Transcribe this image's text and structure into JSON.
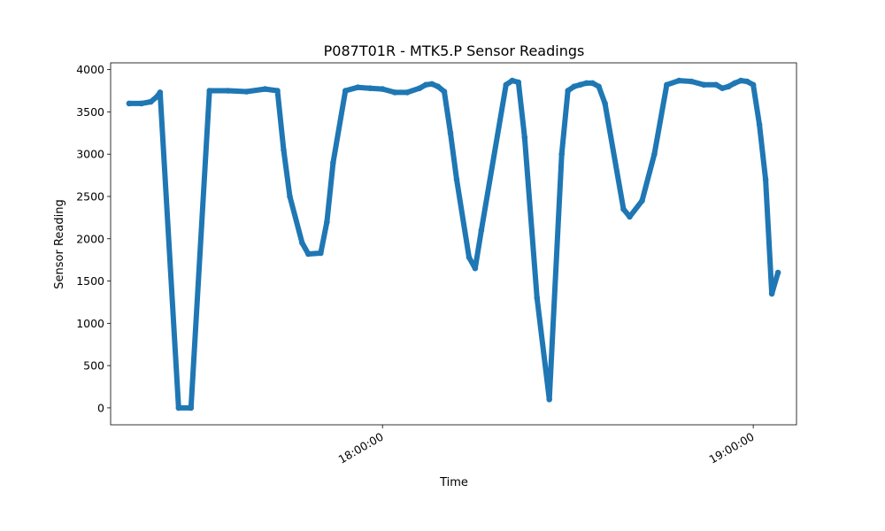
{
  "chart_data": {
    "type": "scatter",
    "title": "P087T01R - MTK5.P Sensor Readings",
    "xlabel": "Time",
    "ylabel": "Sensor Reading",
    "series_color": "#1f77b4",
    "x_ticks": [
      "18:00:00",
      "19:00:00"
    ],
    "x_range": [
      "17:16:00",
      "19:07:00"
    ],
    "ylim": [
      -200,
      4080
    ],
    "y_ticks": [
      0,
      500,
      1000,
      1500,
      2000,
      2500,
      3000,
      3500,
      4000
    ],
    "grid": false,
    "x": [
      "17:19:00",
      "17:21:00",
      "17:22:30",
      "17:23:30",
      "17:24:00",
      "17:27:00",
      "17:29:00",
      "17:32:00",
      "17:35:00",
      "17:38:00",
      "17:41:00",
      "17:43:00",
      "17:44:00",
      "17:45:00",
      "17:47:00",
      "17:48:00",
      "17:50:00",
      "17:51:00",
      "17:52:00",
      "17:54:00",
      "17:56:00",
      "17:58:00",
      "18:00:00",
      "18:02:00",
      "18:04:00",
      "18:06:00",
      "18:07:00",
      "18:08:00",
      "18:09:00",
      "18:10:00",
      "18:11:00",
      "18:12:00",
      "18:14:00",
      "18:15:00",
      "18:16:00",
      "18:20:00",
      "18:21:00",
      "18:22:00",
      "18:23:00",
      "18:25:00",
      "18:27:00",
      "18:29:00",
      "18:30:00",
      "18:31:00",
      "18:32:00",
      "18:33:00",
      "18:34:00",
      "18:35:00",
      "18:36:00",
      "18:39:00",
      "18:40:00",
      "18:42:00",
      "18:44:00",
      "18:46:00",
      "18:48:00",
      "18:50:00",
      "18:52:00",
      "18:54:00",
      "18:55:00",
      "18:56:00",
      "18:57:00",
      "18:58:00",
      "18:59:00",
      "19:00:00",
      "19:01:00",
      "19:02:00",
      "19:03:00",
      "19:04:00"
    ],
    "values": [
      3600,
      3600,
      3620,
      3680,
      3730,
      0,
      0,
      3750,
      3750,
      3740,
      3770,
      3750,
      3050,
      2500,
      1950,
      1820,
      1830,
      2200,
      2900,
      3750,
      3790,
      3780,
      3770,
      3730,
      3730,
      3780,
      3820,
      3830,
      3800,
      3740,
      3250,
      2700,
      1780,
      1650,
      2100,
      3820,
      3870,
      3850,
      3200,
      1300,
      100,
      3000,
      3750,
      3800,
      3820,
      3840,
      3840,
      3800,
      3600,
      2350,
      2260,
      2450,
      3000,
      3820,
      3870,
      3860,
      3820,
      3820,
      3780,
      3800,
      3840,
      3870,
      3860,
      3820,
      3350,
      2700,
      1350,
      1600
    ]
  }
}
